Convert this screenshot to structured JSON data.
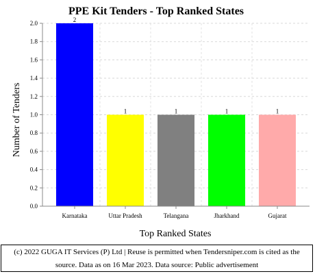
{
  "chart_data": {
    "type": "bar",
    "title": "PPE Kit Tenders - Top Ranked States",
    "xlabel": "Top Ranked States",
    "ylabel": "Number of Tenders",
    "categories": [
      "Karnataka",
      "Uttar Pradesh",
      "Telangana",
      "Jharkhand",
      "Gujarat"
    ],
    "values": [
      2,
      1,
      1,
      1,
      1
    ],
    "data_labels": [
      "2",
      "1",
      "1",
      "1",
      "1"
    ],
    "colors": [
      "#0000ff",
      "#ffff00",
      "#808080",
      "#00ff00",
      "#ffaaaa"
    ],
    "ylim": [
      0,
      2.0
    ],
    "yticks": [
      "0.0",
      "0.2",
      "0.4",
      "0.6",
      "0.8",
      "1.0",
      "1.2",
      "1.4",
      "1.6",
      "1.8",
      "2.0"
    ],
    "grid": true,
    "legend": "none"
  },
  "footer": {
    "line1": "(c) 2022 GUGA IT Services (P) Ltd | Reuse is permitted when Tendersniper.com is cited as the",
    "line2": "source. Data as on 16 Mar 2023. Data source: Public advertisement"
  }
}
